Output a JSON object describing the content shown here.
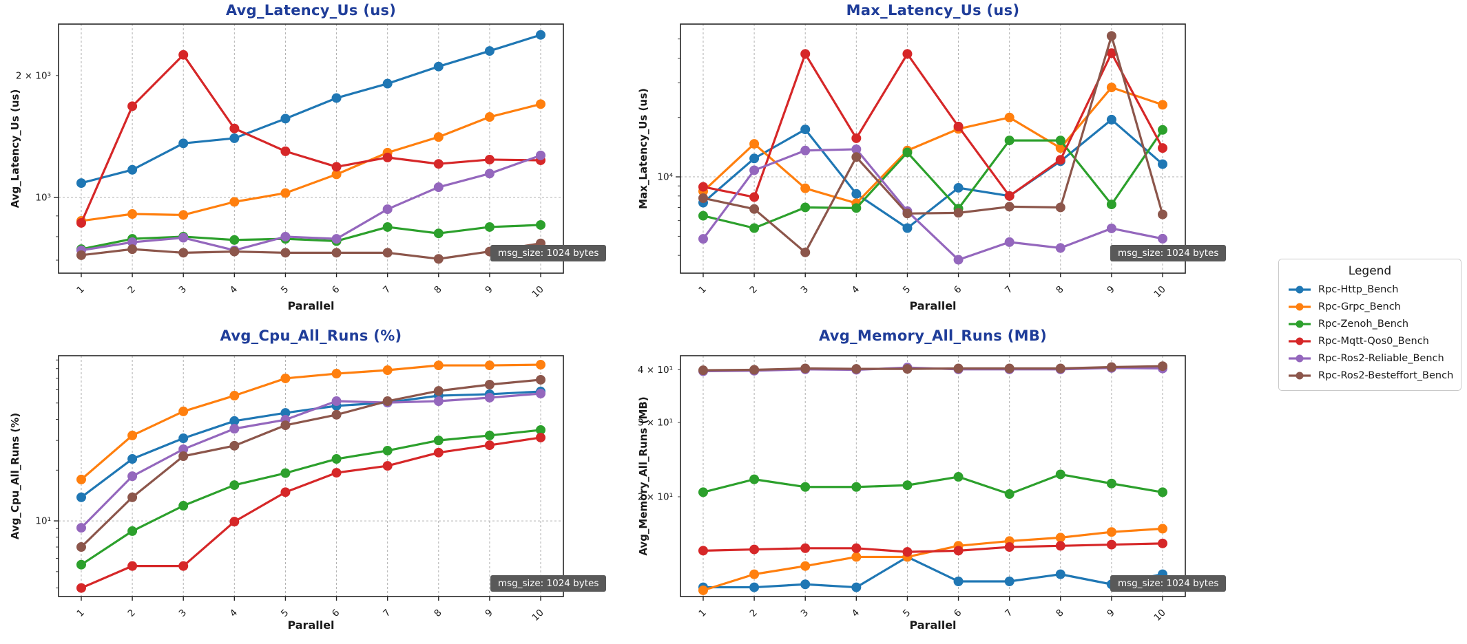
{
  "legend": {
    "title": "Legend",
    "items": [
      {
        "label": "Rpc-Http_Bench",
        "color": "#1f77b4"
      },
      {
        "label": "Rpc-Grpc_Bench",
        "color": "#ff7f0e"
      },
      {
        "label": "Rpc-Zenoh_Bench",
        "color": "#2ca02c"
      },
      {
        "label": "Rpc-Mqtt-Qos0_Bench",
        "color": "#d62728"
      },
      {
        "label": "Rpc-Ros2-Reliable_Bench",
        "color": "#9467bd"
      },
      {
        "label": "Rpc-Ros2-Besteffort_Bench",
        "color": "#8c564b"
      }
    ]
  },
  "chart_data": [
    {
      "type": "line",
      "title": "Avg_Latency_Us  (us)",
      "ylabel": "Avg_Latency_Us (us)",
      "xlabel": "Parallel",
      "annotation": "msg_size: 1024 bytes",
      "yscale": "log",
      "ylim": [
        650,
        2680
      ],
      "grid": "major",
      "legend_position": "figure-right",
      "yticks": [
        {
          "value": 2000,
          "label": "2 × 10³"
        },
        {
          "value": 1000,
          "label": "10³"
        }
      ],
      "grid_y": [
        1000
      ],
      "x": [
        1,
        2,
        3,
        4,
        5,
        6,
        7,
        8,
        9,
        10
      ],
      "series": [
        {
          "name": "Rpc-Http_Bench",
          "color": "#1f77b4",
          "values": [
            1085,
            1170,
            1360,
            1400,
            1565,
            1760,
            1910,
            2105,
            2300,
            2520
          ]
        },
        {
          "name": "Rpc-Grpc_Bench",
          "color": "#ff7f0e",
          "values": [
            875,
            910,
            905,
            975,
            1025,
            1140,
            1290,
            1410,
            1580,
            1700
          ]
        },
        {
          "name": "Rpc-Zenoh_Bench",
          "color": "#2ca02c",
          "values": [
            745,
            790,
            800,
            785,
            790,
            780,
            845,
            815,
            845,
            855
          ]
        },
        {
          "name": "Rpc-Mqtt-Qos0_Bench",
          "color": "#d62728",
          "values": [
            865,
            1680,
            2250,
            1480,
            1300,
            1190,
            1255,
            1210,
            1240,
            1235
          ]
        },
        {
          "name": "Rpc-Ros2-Reliable_Bench",
          "color": "#9467bd",
          "values": [
            740,
            775,
            795,
            740,
            800,
            790,
            935,
            1060,
            1145,
            1270
          ]
        },
        {
          "name": "Rpc-Ros2-Besteffort_Bench",
          "color": "#8c564b",
          "values": [
            720,
            745,
            730,
            735,
            730,
            730,
            730,
            705,
            735,
            770
          ]
        }
      ]
    },
    {
      "type": "line",
      "title": "Max_Latency_Us  (us)",
      "ylabel": "Max_Latency_Us (us)",
      "xlabel": "Parallel",
      "annotation": "msg_size: 1024 bytes",
      "yscale": "log",
      "ylim": [
        3250,
        59500
      ],
      "grid": "major",
      "yticks": [
        {
          "value": 10000,
          "label": "10⁴"
        }
      ],
      "grid_y": [
        10000
      ],
      "x": [
        1,
        2,
        3,
        4,
        5,
        6,
        7,
        8,
        9,
        10
      ],
      "series": [
        {
          "name": "Rpc-Http_Bench",
          "color": "#1f77b4",
          "values": [
            7400,
            12400,
            17400,
            8200,
            5500,
            8800,
            8000,
            12000,
            19500,
            11600
          ]
        },
        {
          "name": "Rpc-Grpc_Bench",
          "color": "#ff7f0e",
          "values": [
            8450,
            14700,
            8750,
            7350,
            13600,
            17500,
            20000,
            14000,
            28400,
            23200
          ]
        },
        {
          "name": "Rpc-Zenoh_Bench",
          "color": "#2ca02c",
          "values": [
            6350,
            5500,
            7000,
            6950,
            13300,
            6900,
            15300,
            15300,
            7250,
            17300
          ]
        },
        {
          "name": "Rpc-Mqtt-Qos0_Bench",
          "color": "#d62728",
          "values": [
            8900,
            7900,
            42000,
            15700,
            42000,
            18000,
            8000,
            12200,
            42400,
            14000
          ]
        },
        {
          "name": "Rpc-Ros2-Reliable_Bench",
          "color": "#9467bd",
          "values": [
            4850,
            10800,
            13600,
            13800,
            6700,
            3800,
            4670,
            4360,
            5480,
            4860
          ]
        },
        {
          "name": "Rpc-Ros2-Besteffort_Bench",
          "color": "#8c564b",
          "values": [
            7800,
            6870,
            4140,
            12600,
            6520,
            6570,
            7060,
            7000,
            51800,
            6450
          ]
        }
      ]
    },
    {
      "type": "line",
      "title": "Avg_Cpu_All_Runs  (%)",
      "ylabel": "Avg_Cpu_All_Runs (%)",
      "xlabel": "Parallel",
      "annotation": "msg_size: 1024 bytes",
      "yscale": "log",
      "ylim": [
        3.56,
        95.4
      ],
      "grid": "major",
      "yticks": [
        {
          "value": 10,
          "label": "10¹"
        }
      ],
      "grid_y": [
        10
      ],
      "x": [
        1,
        2,
        3,
        4,
        5,
        6,
        7,
        8,
        9,
        10
      ],
      "series": [
        {
          "name": "Rpc-Http_Bench",
          "color": "#1f77b4",
          "values": [
            13.8,
            23.3,
            30.9,
            39.1,
            43.7,
            48.1,
            50.3,
            55.3,
            56.4,
            58.5
          ]
        },
        {
          "name": "Rpc-Grpc_Bench",
          "color": "#ff7f0e",
          "values": [
            17.6,
            32.1,
            44.6,
            55.3,
            70.0,
            74.7,
            78.3,
            83.6,
            83.6,
            84.4
          ]
        },
        {
          "name": "Rpc-Zenoh_Bench",
          "color": "#2ca02c",
          "values": [
            5.5,
            8.7,
            12.3,
            16.3,
            19.2,
            23.3,
            26.1,
            30.0,
            32.1,
            34.6
          ]
        },
        {
          "name": "Rpc-Mqtt-Qos0_Bench",
          "color": "#d62728",
          "values": [
            4.0,
            5.4,
            5.4,
            9.9,
            14.8,
            19.3,
            21.2,
            25.4,
            28.1,
            31.2
          ]
        },
        {
          "name": "Rpc-Ros2-Reliable_Bench",
          "color": "#9467bd",
          "values": [
            9.1,
            18.4,
            26.6,
            35.2,
            39.8,
            51.3,
            50.3,
            51.3,
            53.8,
            56.9
          ]
        },
        {
          "name": "Rpc-Ros2-Besteffort_Bench",
          "color": "#8c564b",
          "values": [
            7.0,
            13.8,
            24.2,
            27.9,
            36.9,
            42.6,
            51.3,
            59.0,
            64.3,
            68.7
          ]
        }
      ]
    },
    {
      "type": "line",
      "title": "Avg_Memory_All_Runs  (MB)",
      "ylabel": "Avg_Memory_All_Runs (MB)",
      "xlabel": "Parallel",
      "annotation": "msg_size: 1024 bytes",
      "yscale": "log",
      "ylim": [
        11.6,
        43.2
      ],
      "grid": "major",
      "yticks": [
        {
          "value": 40,
          "label": "4 × 10¹"
        },
        {
          "value": 30,
          "label": "3 × 10¹"
        },
        {
          "value": 20,
          "label": "2 × 10¹"
        }
      ],
      "grid_y": [],
      "x": [
        1,
        2,
        3,
        4,
        5,
        6,
        7,
        8,
        9,
        10
      ],
      "series": [
        {
          "name": "Rpc-Http_Bench",
          "color": "#1f77b4",
          "values": [
            12.2,
            12.2,
            12.4,
            12.2,
            14.4,
            12.6,
            12.6,
            13.1,
            12.4,
            13.1
          ]
        },
        {
          "name": "Rpc-Grpc_Bench",
          "color": "#ff7f0e",
          "values": [
            12.0,
            13.1,
            13.7,
            14.4,
            14.4,
            15.3,
            15.7,
            16.0,
            16.5,
            16.8
          ]
        },
        {
          "name": "Rpc-Zenoh_Bench",
          "color": "#2ca02c",
          "values": [
            20.5,
            22.0,
            21.1,
            21.1,
            21.3,
            22.3,
            20.3,
            22.6,
            21.5,
            20.5
          ]
        },
        {
          "name": "Rpc-Mqtt-Qos0_Bench",
          "color": "#d62728",
          "values": [
            14.9,
            15.0,
            15.1,
            15.1,
            14.8,
            14.9,
            15.2,
            15.3,
            15.4,
            15.5
          ]
        },
        {
          "name": "Rpc-Ros2-Reliable_Bench",
          "color": "#9467bd",
          "values": [
            39.7,
            39.8,
            40.1,
            40.0,
            40.5,
            40.1,
            40.1,
            40.1,
            40.4,
            40.3
          ]
        },
        {
          "name": "Rpc-Ros2-Besteffort_Bench",
          "color": "#8c564b",
          "values": [
            39.9,
            40.0,
            40.3,
            40.2,
            40.2,
            40.3,
            40.3,
            40.3,
            40.6,
            40.8
          ]
        }
      ]
    }
  ]
}
